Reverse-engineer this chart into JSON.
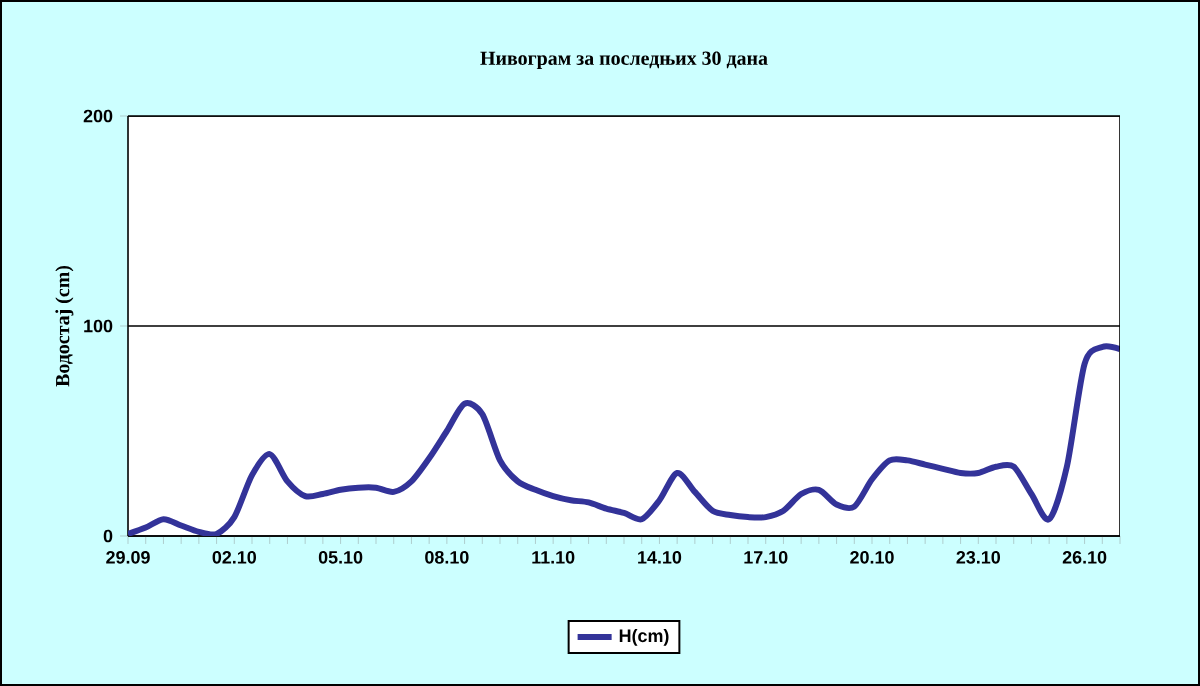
{
  "chart_data": {
    "type": "line",
    "title": "Нивограм за последњих 30 дана",
    "ylabel": "Водостај (cm)",
    "categories": [
      "29.09",
      null,
      null,
      null,
      null,
      null,
      "02.10",
      null,
      null,
      null,
      null,
      null,
      "05.10",
      null,
      null,
      null,
      null,
      null,
      "08.10",
      null,
      null,
      null,
      null,
      null,
      "11.10",
      null,
      null,
      null,
      null,
      null,
      "14.10",
      null,
      null,
      null,
      null,
      null,
      "17.10",
      null,
      null,
      null,
      null,
      null,
      "20.10",
      null,
      null,
      null,
      null,
      null,
      "23.10",
      null,
      null,
      null,
      null,
      null,
      "26.10",
      null,
      null
    ],
    "series": [
      {
        "name": "H(cm)",
        "color": "#333399",
        "values": [
          1,
          4,
          8,
          5,
          2,
          1,
          9,
          29,
          39,
          26,
          19,
          20,
          22,
          23,
          23,
          21,
          26,
          37,
          50,
          63,
          58,
          36,
          26,
          22,
          19,
          17,
          16,
          13,
          11,
          8,
          17,
          30,
          21,
          12,
          10,
          9,
          9,
          12,
          20,
          22,
          15,
          14,
          27,
          36,
          36,
          34,
          32,
          30,
          30,
          33,
          33,
          20,
          8,
          33,
          82,
          90,
          89
        ]
      }
    ],
    "ylim": [
      0,
      200
    ],
    "yticks": [
      0,
      100,
      200
    ],
    "grid": "y",
    "legend": "bottom",
    "marker": "none",
    "line_style": "solid"
  }
}
